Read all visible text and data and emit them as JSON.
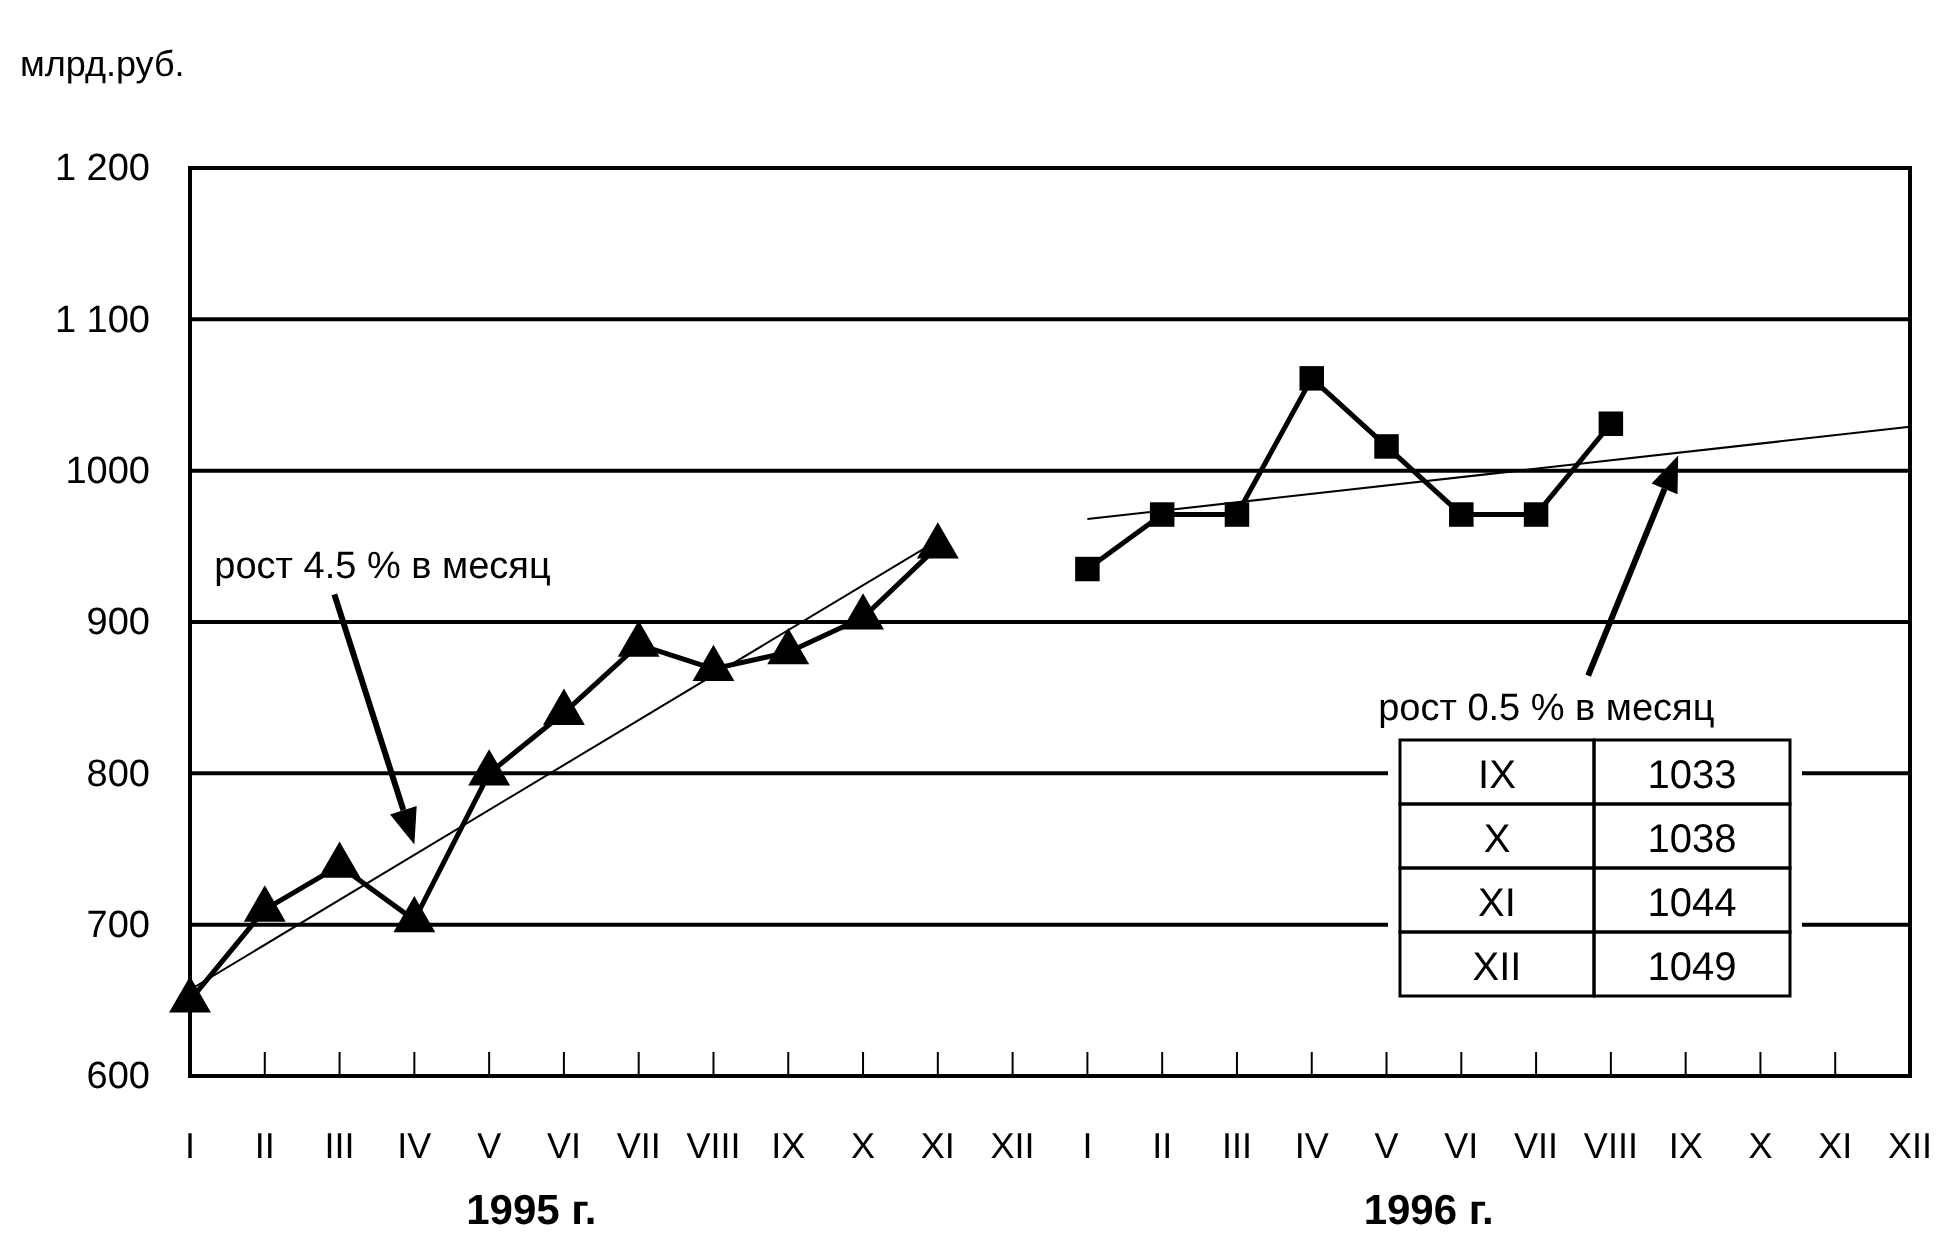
{
  "chart_data": {
    "type": "line",
    "ylabel": "млрд.руб.",
    "categories": [
      "I",
      "II",
      "III",
      "IV",
      "V",
      "VI",
      "VII",
      "VIII",
      "IX",
      "X",
      "XI",
      "XII",
      "I",
      "II",
      "III",
      "IV",
      "V",
      "VI",
      "VII",
      "VIII",
      "IX",
      "X",
      "XI",
      "XII"
    ],
    "ylim": [
      600,
      1200
    ],
    "yticks": [
      600,
      700,
      800,
      900,
      1000,
      {
        "value": 1100,
        "label": "1 100"
      },
      {
        "value": 1200,
        "label": "1 200"
      }
    ],
    "grid": "y",
    "line_style": "solid",
    "series": [
      {
        "color": "#000000",
        "marker": "triangle",
        "values": [
          650,
          710,
          739,
          703,
          800,
          840,
          885,
          869,
          880,
          903,
          950,
          null,
          null,
          null,
          null,
          null,
          null,
          null,
          null,
          null,
          null,
          null,
          null,
          null
        ]
      },
      {
        "color": "#000000",
        "marker": "square",
        "values": [
          null,
          null,
          null,
          null,
          null,
          null,
          null,
          null,
          null,
          null,
          null,
          null,
          935,
          971,
          971,
          1061,
          1016,
          971,
          971,
          1031,
          null,
          null,
          null,
          null
        ]
      },
      {
        "color": "#000000",
        "marker": "none",
        "values": [
          657,
          null,
          null,
          null,
          null,
          null,
          null,
          null,
          null,
          null,
          954,
          null,
          null,
          null,
          null,
          null,
          null,
          null,
          null,
          null,
          null,
          null,
          null,
          null
        ]
      },
      {
        "color": "#000000",
        "marker": "none",
        "values": [
          null,
          null,
          null,
          null,
          null,
          null,
          null,
          null,
          null,
          null,
          null,
          null,
          968,
          null,
          null,
          null,
          null,
          null,
          null,
          null,
          null,
          null,
          null,
          1029
        ]
      }
    ],
    "annotations": [
      "рост 4.5 % в месяц",
      "рост 0.5 % в месяц",
      "1995 г.",
      "1996 г.",
      "IX",
      "1033",
      "X",
      "1038",
      "XI",
      "1044",
      "XII",
      "1049"
    ]
  }
}
